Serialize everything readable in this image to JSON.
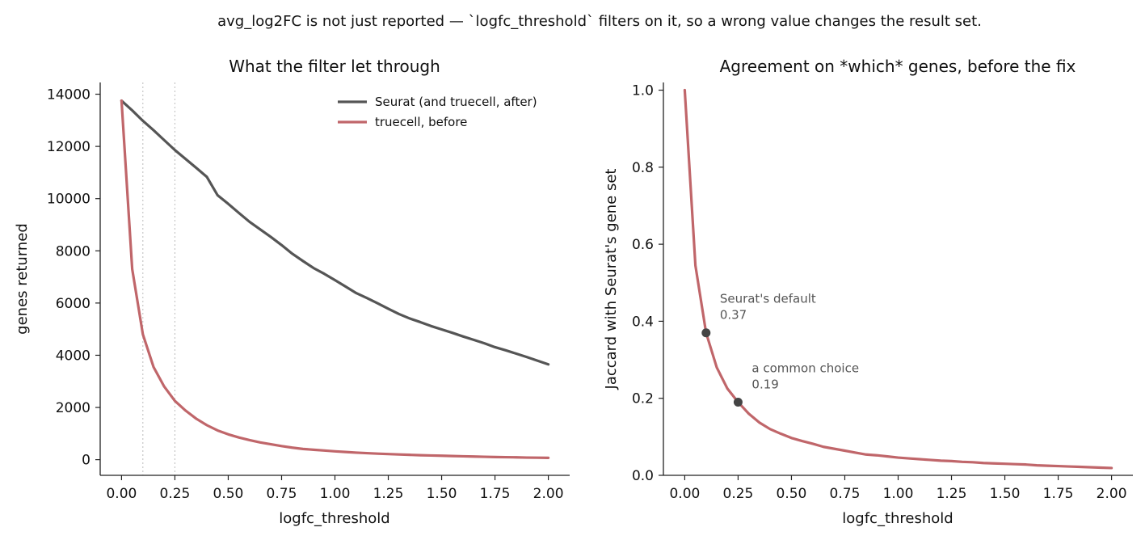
{
  "suptitle": "avg_log2FC is not just reported — `logfc_threshold` filters on it, so a wrong value changes the result set.",
  "colors": {
    "seurat": "#555555",
    "truecell_before": "#c0666a",
    "vline": "#bbbbbb",
    "marker": "#444444"
  },
  "chart_data": [
    {
      "type": "line",
      "title": "What the filter let through",
      "xlabel": "logfc_threshold",
      "ylabel": "genes returned",
      "xlim": [
        -0.1,
        2.1
      ],
      "ylim": [
        -600,
        14450
      ],
      "xticks": [
        0.0,
        0.25,
        0.5,
        0.75,
        1.0,
        1.25,
        1.5,
        1.75,
        2.0
      ],
      "xtick_labels": [
        "0.00",
        "0.25",
        "0.50",
        "0.75",
        "1.00",
        "1.25",
        "1.50",
        "1.75",
        "2.00"
      ],
      "yticks": [
        0,
        2000,
        4000,
        6000,
        8000,
        10000,
        12000,
        14000
      ],
      "ytick_labels": [
        "0",
        "2000",
        "4000",
        "6000",
        "8000",
        "10000",
        "12000",
        "14000"
      ],
      "vlines": [
        0.1,
        0.25
      ],
      "legend": "top-right",
      "grid": false,
      "series": [
        {
          "name": "Seurat (and truecell, after)",
          "color": "#555555",
          "x": [
            0.0,
            0.05,
            0.1,
            0.15,
            0.2,
            0.25,
            0.3,
            0.35,
            0.4,
            0.45,
            0.5,
            0.55,
            0.6,
            0.65,
            0.7,
            0.75,
            0.8,
            0.85,
            0.9,
            0.95,
            1.0,
            1.05,
            1.1,
            1.15,
            1.2,
            1.25,
            1.3,
            1.35,
            1.4,
            1.45,
            1.5,
            1.55,
            1.6,
            1.65,
            1.7,
            1.75,
            1.8,
            1.85,
            1.9,
            1.95,
            2.0
          ],
          "y": [
            13750,
            13380,
            12980,
            12620,
            12240,
            11860,
            11520,
            11180,
            10830,
            10130,
            9800,
            9450,
            9110,
            8820,
            8530,
            8220,
            7890,
            7610,
            7340,
            7120,
            6880,
            6630,
            6380,
            6190,
            5990,
            5780,
            5580,
            5410,
            5270,
            5120,
            4990,
            4860,
            4720,
            4590,
            4460,
            4310,
            4190,
            4060,
            3930,
            3790,
            3650
          ]
        },
        {
          "name": "truecell, before",
          "color": "#c0666a",
          "x": [
            0.0,
            0.05,
            0.1,
            0.15,
            0.2,
            0.25,
            0.3,
            0.35,
            0.4,
            0.45,
            0.5,
            0.55,
            0.6,
            0.65,
            0.7,
            0.75,
            0.8,
            0.85,
            0.9,
            0.95,
            1.0,
            1.05,
            1.1,
            1.15,
            1.2,
            1.25,
            1.3,
            1.35,
            1.4,
            1.45,
            1.5,
            1.55,
            1.6,
            1.65,
            1.7,
            1.75,
            1.8,
            1.85,
            1.9,
            1.95,
            2.0
          ],
          "y": [
            13750,
            7300,
            4800,
            3550,
            2800,
            2250,
            1880,
            1570,
            1320,
            1120,
            970,
            850,
            750,
            660,
            590,
            520,
            460,
            410,
            380,
            350,
            320,
            295,
            270,
            250,
            230,
            215,
            200,
            185,
            170,
            160,
            150,
            140,
            130,
            120,
            110,
            100,
            95,
            90,
            80,
            75,
            70
          ]
        }
      ]
    },
    {
      "type": "line",
      "title": "Agreement on *which* genes, before the fix",
      "xlabel": "logfc_threshold",
      "ylabel": "Jaccard with Seurat's gene set",
      "xlim": [
        -0.1,
        2.1
      ],
      "ylim": [
        0.0,
        1.02
      ],
      "xticks": [
        0.0,
        0.25,
        0.5,
        0.75,
        1.0,
        1.25,
        1.5,
        1.75,
        2.0
      ],
      "xtick_labels": [
        "0.00",
        "0.25",
        "0.50",
        "0.75",
        "1.00",
        "1.25",
        "1.50",
        "1.75",
        "2.00"
      ],
      "yticks": [
        0.0,
        0.2,
        0.4,
        0.6,
        0.8,
        1.0
      ],
      "ytick_labels": [
        "0.0",
        "0.2",
        "0.4",
        "0.6",
        "0.8",
        "1.0"
      ],
      "grid": false,
      "series": [
        {
          "color": "#c0666a",
          "x": [
            0.0,
            0.05,
            0.1,
            0.15,
            0.2,
            0.25,
            0.3,
            0.35,
            0.4,
            0.45,
            0.5,
            0.55,
            0.6,
            0.65,
            0.7,
            0.75,
            0.8,
            0.85,
            0.9,
            0.95,
            1.0,
            1.05,
            1.1,
            1.15,
            1.2,
            1.25,
            1.3,
            1.35,
            1.4,
            1.45,
            1.5,
            1.55,
            1.6,
            1.65,
            1.7,
            1.75,
            1.8,
            1.85,
            1.9,
            1.95,
            2.0
          ],
          "y": [
            1.0,
            0.545,
            0.37,
            0.28,
            0.225,
            0.19,
            0.16,
            0.137,
            0.12,
            0.108,
            0.097,
            0.089,
            0.082,
            0.074,
            0.069,
            0.064,
            0.059,
            0.054,
            0.052,
            0.049,
            0.046,
            0.044,
            0.042,
            0.04,
            0.038,
            0.037,
            0.035,
            0.034,
            0.032,
            0.031,
            0.03,
            0.029,
            0.028,
            0.026,
            0.025,
            0.024,
            0.023,
            0.022,
            0.021,
            0.02,
            0.019
          ]
        }
      ],
      "points": [
        {
          "x": 0.1,
          "y": 0.37,
          "label": "Seurat's default",
          "value": "0.37"
        },
        {
          "x": 0.25,
          "y": 0.19,
          "label": "a common choice",
          "value": "0.19"
        }
      ]
    }
  ]
}
